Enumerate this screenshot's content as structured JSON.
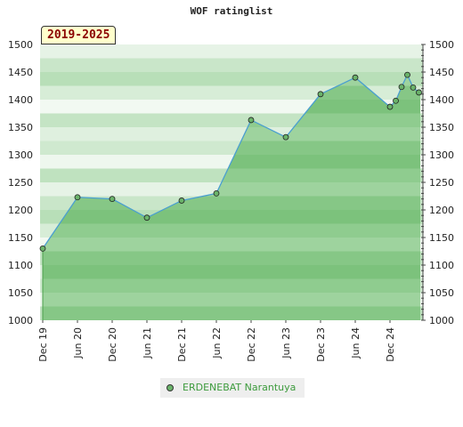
{
  "chart_data": {
    "type": "area",
    "title": "WOF ratinglist",
    "period_label": "2019-2025",
    "x_tick_labels": [
      "Dec 19",
      "Jun 20",
      "Dec 20",
      "Jun 21",
      "Dec 21",
      "Jun 22",
      "Dec 22",
      "Jun 23",
      "Dec 23",
      "Jun 24",
      "Dec 24"
    ],
    "ylim": [
      1000,
      1500
    ],
    "y_ticks": [
      1000,
      1050,
      1100,
      1150,
      1200,
      1250,
      1300,
      1350,
      1400,
      1450,
      1500
    ],
    "grid": true,
    "legend_position": "bottom",
    "series": [
      {
        "name": "ERDENEBAT Narantuya",
        "color": "#6ab36a",
        "points": [
          {
            "x": "2019-12",
            "y": 1130
          },
          {
            "x": "2020-06",
            "y": 1223
          },
          {
            "x": "2020-12",
            "y": 1220
          },
          {
            "x": "2021-06",
            "y": 1186
          },
          {
            "x": "2021-12",
            "y": 1217
          },
          {
            "x": "2022-06",
            "y": 1230
          },
          {
            "x": "2022-12",
            "y": 1363
          },
          {
            "x": "2023-06",
            "y": 1332
          },
          {
            "x": "2023-12",
            "y": 1410
          },
          {
            "x": "2024-06",
            "y": 1440
          },
          {
            "x": "2024-12",
            "y": 1387
          },
          {
            "x": "2025-01",
            "y": 1398
          },
          {
            "x": "2025-02",
            "y": 1423
          },
          {
            "x": "2025-03",
            "y": 1445
          },
          {
            "x": "2025-04",
            "y": 1422
          },
          {
            "x": "2025-05",
            "y": 1413
          }
        ]
      }
    ]
  }
}
